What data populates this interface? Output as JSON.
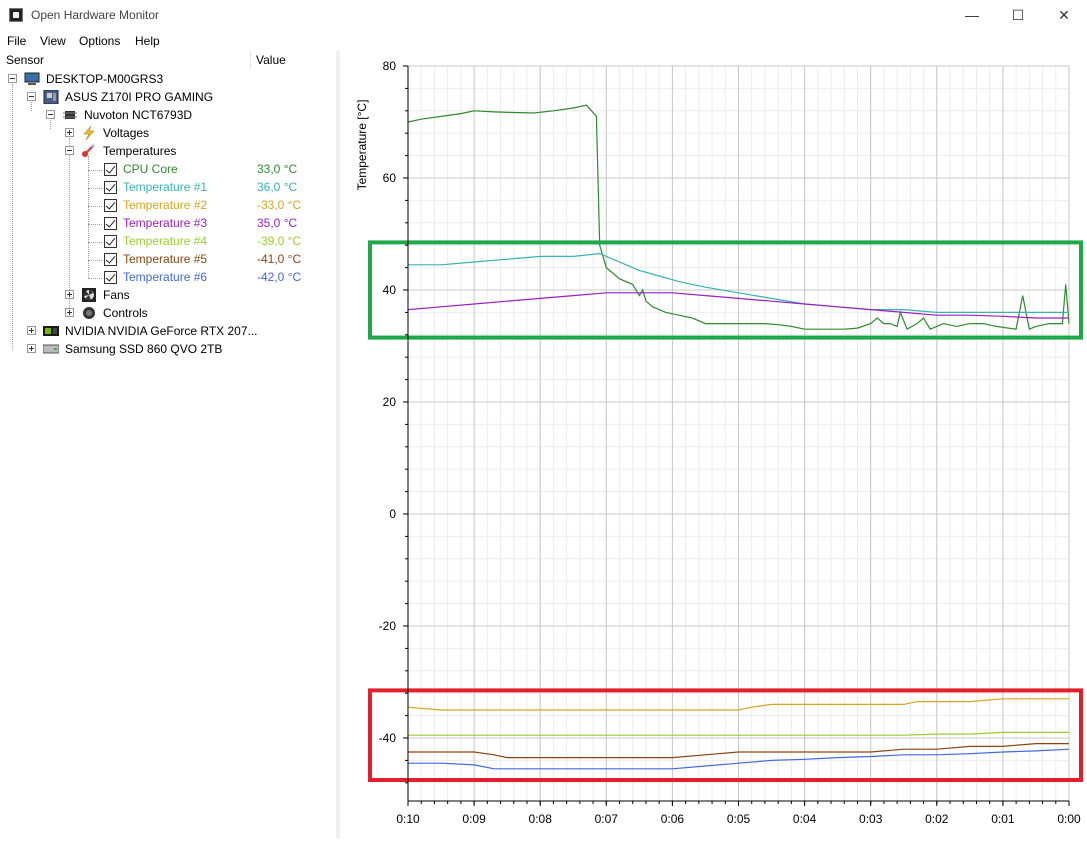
{
  "window": {
    "title": "Open Hardware Monitor",
    "minimize": "—",
    "maximize": "☐",
    "close": "✕"
  },
  "menu": [
    "File",
    "View",
    "Options",
    "Help"
  ],
  "tree": {
    "header": {
      "sensor": "Sensor",
      "value": "Value"
    },
    "computer": "DESKTOP-M00GRS3",
    "mainboard": "ASUS Z170I PRO GAMING",
    "chip": "Nuvoton NCT6793D",
    "voltages": "Voltages",
    "temperatures": "Temperatures",
    "sensors": [
      {
        "label": "CPU Core",
        "value": "33,0 °C",
        "color": "#2e8b2e"
      },
      {
        "label": "Temperature #1",
        "value": "36,0 °C",
        "color": "#37b3b3"
      },
      {
        "label": "Temperature #2",
        "value": "-33,0 °C",
        "color": "#daa520"
      },
      {
        "label": "Temperature #3",
        "value": "35,0 °C",
        "color": "#9b1fc3"
      },
      {
        "label": "Temperature #4",
        "value": "-39,0 °C",
        "color": "#9acd32"
      },
      {
        "label": "Temperature #5",
        "value": "-41,0 °C",
        "color": "#8b4513"
      },
      {
        "label": "Temperature #6",
        "value": "-42,0 °C",
        "color": "#4169e1"
      }
    ],
    "fans": "Fans",
    "controls": "Controls",
    "gpu": "NVIDIA NVIDIA GeForce RTX 207...",
    "ssd": "Samsung SSD 860 QVO 2TB"
  },
  "chart_data": {
    "type": "line",
    "ylabel": "Temperature [°C]",
    "ylim": [
      -50,
      80
    ],
    "yticks": [
      "80",
      "60",
      "40",
      "20",
      "0",
      "-20",
      "-40"
    ],
    "xticks": [
      "0:10",
      "0:09",
      "0:08",
      "0:07",
      "0:06",
      "0:05",
      "0:04",
      "0:03",
      "0:02",
      "0:01",
      "0:00"
    ],
    "x_minutes_ago": [
      10,
      0
    ],
    "grid": true,
    "highlight_boxes": [
      {
        "color": "#1fa84a",
        "y_range": [
          31.5,
          48.5
        ]
      },
      {
        "color": "#e0202a",
        "y_range": [
          -47.5,
          -31.5
        ]
      }
    ],
    "series": [
      {
        "name": "CPU Core",
        "color": "#2e8b2e",
        "points": [
          [
            10,
            70
          ],
          [
            9.8,
            70.5
          ],
          [
            9.5,
            71
          ],
          [
            9.2,
            71.5
          ],
          [
            9,
            72
          ],
          [
            8.7,
            71.8
          ],
          [
            8.4,
            71.7
          ],
          [
            8.1,
            71.6
          ],
          [
            7.8,
            72
          ],
          [
            7.5,
            72.5
          ],
          [
            7.3,
            73
          ],
          [
            7.15,
            71
          ],
          [
            7.1,
            48
          ],
          [
            7.0,
            44
          ],
          [
            6.8,
            42
          ],
          [
            6.6,
            41
          ],
          [
            6.5,
            39
          ],
          [
            6.45,
            40
          ],
          [
            6.4,
            38
          ],
          [
            6.3,
            37
          ],
          [
            6.1,
            36
          ],
          [
            5.9,
            35.5
          ],
          [
            5.7,
            35
          ],
          [
            5.5,
            34
          ],
          [
            5.2,
            34
          ],
          [
            5.0,
            34
          ],
          [
            4.8,
            34
          ],
          [
            4.6,
            34
          ],
          [
            4.4,
            33.8
          ],
          [
            4.2,
            33.5
          ],
          [
            4.0,
            33
          ],
          [
            3.8,
            33
          ],
          [
            3.6,
            33
          ],
          [
            3.4,
            33
          ],
          [
            3.2,
            33.2
          ],
          [
            3.0,
            34
          ],
          [
            2.9,
            35
          ],
          [
            2.8,
            34
          ],
          [
            2.7,
            34
          ],
          [
            2.6,
            33.5
          ],
          [
            2.55,
            36
          ],
          [
            2.45,
            33
          ],
          [
            2.3,
            34
          ],
          [
            2.2,
            35
          ],
          [
            2.1,
            33
          ],
          [
            1.9,
            34
          ],
          [
            1.7,
            33.5
          ],
          [
            1.5,
            34
          ],
          [
            1.3,
            34
          ],
          [
            1.1,
            33.5
          ],
          [
            0.8,
            33
          ],
          [
            0.7,
            39
          ],
          [
            0.6,
            33
          ],
          [
            0.5,
            33.5
          ],
          [
            0.3,
            34
          ],
          [
            0.1,
            34
          ],
          [
            0.05,
            41
          ],
          [
            0,
            34
          ]
        ]
      },
      {
        "name": "Temperature #1",
        "color": "#37b3b3",
        "points": [
          [
            10,
            44.5
          ],
          [
            9.5,
            44.5
          ],
          [
            9.0,
            45
          ],
          [
            8.5,
            45.5
          ],
          [
            8.0,
            46
          ],
          [
            7.5,
            46
          ],
          [
            7.1,
            46.5
          ],
          [
            6.9,
            45.5
          ],
          [
            6.7,
            44.5
          ],
          [
            6.5,
            43.5
          ],
          [
            6.2,
            42.5
          ],
          [
            5.9,
            41.5
          ],
          [
            5.5,
            40.5
          ],
          [
            5.0,
            39.5
          ],
          [
            4.5,
            38.5
          ],
          [
            4.0,
            37.5
          ],
          [
            3.5,
            37
          ],
          [
            3.0,
            36.5
          ],
          [
            2.5,
            36.5
          ],
          [
            2.0,
            36
          ],
          [
            1.5,
            36
          ],
          [
            1.0,
            36
          ],
          [
            0.5,
            36
          ],
          [
            0,
            36
          ]
        ]
      },
      {
        "name": "Temperature #3",
        "color": "#9b1fc3",
        "points": [
          [
            10,
            36.5
          ],
          [
            9.5,
            37
          ],
          [
            9.0,
            37.5
          ],
          [
            8.5,
            38
          ],
          [
            8.0,
            38.5
          ],
          [
            7.5,
            39
          ],
          [
            7.0,
            39.5
          ],
          [
            6.5,
            39.5
          ],
          [
            6.0,
            39.5
          ],
          [
            5.5,
            39
          ],
          [
            5.0,
            38.5
          ],
          [
            4.5,
            38
          ],
          [
            4.0,
            37.5
          ],
          [
            3.5,
            37
          ],
          [
            3.0,
            36.5
          ],
          [
            2.5,
            36
          ],
          [
            2.0,
            35.5
          ],
          [
            1.5,
            35.5
          ],
          [
            1.0,
            35.3
          ],
          [
            0.5,
            35
          ],
          [
            0,
            35
          ]
        ]
      },
      {
        "name": "Temperature #2",
        "color": "#daa520",
        "points": [
          [
            10,
            -34.5
          ],
          [
            9.5,
            -35
          ],
          [
            9.0,
            -35
          ],
          [
            8.5,
            -35
          ],
          [
            8.0,
            -35
          ],
          [
            7.5,
            -35
          ],
          [
            7.0,
            -35
          ],
          [
            6.5,
            -35
          ],
          [
            6.0,
            -35
          ],
          [
            5.5,
            -35
          ],
          [
            5.0,
            -35
          ],
          [
            4.8,
            -34.5
          ],
          [
            4.5,
            -34
          ],
          [
            4.0,
            -34
          ],
          [
            3.5,
            -34
          ],
          [
            3.0,
            -34
          ],
          [
            2.5,
            -34
          ],
          [
            2.3,
            -33.5
          ],
          [
            2.0,
            -33.5
          ],
          [
            1.5,
            -33.5
          ],
          [
            1.0,
            -33
          ],
          [
            0.5,
            -33
          ],
          [
            0,
            -33
          ]
        ]
      },
      {
        "name": "Temperature #4",
        "color": "#9acd32",
        "points": [
          [
            10,
            -39.5
          ],
          [
            9.5,
            -39.5
          ],
          [
            9.0,
            -39.5
          ],
          [
            8.5,
            -39.5
          ],
          [
            8.0,
            -39.5
          ],
          [
            7.5,
            -39.5
          ],
          [
            7.0,
            -39.5
          ],
          [
            6.5,
            -39.5
          ],
          [
            6.0,
            -39.5
          ],
          [
            5.5,
            -39.5
          ],
          [
            5.0,
            -39.5
          ],
          [
            4.5,
            -39.5
          ],
          [
            4.0,
            -39.5
          ],
          [
            3.5,
            -39.5
          ],
          [
            3.0,
            -39.5
          ],
          [
            2.5,
            -39.5
          ],
          [
            2.0,
            -39.3
          ],
          [
            1.5,
            -39.3
          ],
          [
            1.0,
            -39
          ],
          [
            0.5,
            -39
          ],
          [
            0,
            -39
          ]
        ]
      },
      {
        "name": "Temperature #5",
        "color": "#8b4513",
        "points": [
          [
            10,
            -42.5
          ],
          [
            9.5,
            -42.5
          ],
          [
            9.0,
            -42.5
          ],
          [
            8.7,
            -43
          ],
          [
            8.5,
            -43.5
          ],
          [
            8.0,
            -43.5
          ],
          [
            7.5,
            -43.5
          ],
          [
            7.0,
            -43.5
          ],
          [
            6.5,
            -43.5
          ],
          [
            6.0,
            -43.5
          ],
          [
            5.5,
            -43
          ],
          [
            5.0,
            -42.5
          ],
          [
            4.5,
            -42.5
          ],
          [
            4.0,
            -42.5
          ],
          [
            3.5,
            -42.5
          ],
          [
            3.0,
            -42.5
          ],
          [
            2.5,
            -42
          ],
          [
            2.0,
            -42
          ],
          [
            1.5,
            -41.5
          ],
          [
            1.0,
            -41.5
          ],
          [
            0.5,
            -41
          ],
          [
            0,
            -41
          ]
        ]
      },
      {
        "name": "Temperature #6",
        "color": "#4169e1",
        "points": [
          [
            10,
            -44.5
          ],
          [
            9.5,
            -44.5
          ],
          [
            9.0,
            -44.8
          ],
          [
            8.7,
            -45.5
          ],
          [
            8.0,
            -45.5
          ],
          [
            7.5,
            -45.5
          ],
          [
            7.0,
            -45.5
          ],
          [
            6.5,
            -45.5
          ],
          [
            6.0,
            -45.5
          ],
          [
            5.5,
            -45
          ],
          [
            5.0,
            -44.5
          ],
          [
            4.5,
            -44
          ],
          [
            4.0,
            -43.8
          ],
          [
            3.5,
            -43.5
          ],
          [
            3.0,
            -43.3
          ],
          [
            2.5,
            -43
          ],
          [
            2.0,
            -43
          ],
          [
            1.5,
            -42.8
          ],
          [
            1.0,
            -42.5
          ],
          [
            0.5,
            -42.3
          ],
          [
            0,
            -42
          ]
        ]
      }
    ]
  }
}
